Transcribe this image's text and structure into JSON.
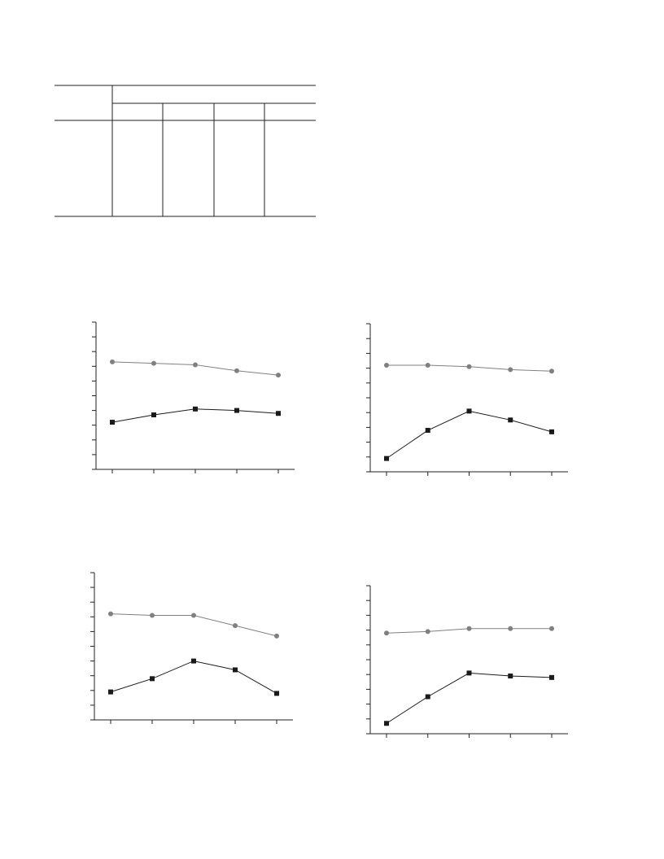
{
  "chart_data": [
    {
      "type": "line",
      "categories": [
        null,
        null,
        null,
        null,
        null
      ],
      "ylim": [
        0,
        10
      ],
      "yticks": [
        0,
        1,
        2,
        3,
        4,
        5,
        6,
        7,
        8,
        9,
        10
      ],
      "series": [
        {
          "color": "#808080",
          "marker": "circle",
          "values": [
            7.3,
            7.2,
            7.1,
            6.7,
            6.4
          ]
        },
        {
          "color": "#1a1a1a",
          "marker": "square",
          "values": [
            3.2,
            3.7,
            4.1,
            4.0,
            3.8
          ]
        }
      ]
    },
    {
      "type": "line",
      "categories": [
        null,
        null,
        null,
        null,
        null
      ],
      "ylim": [
        0,
        10
      ],
      "yticks": [
        0,
        1,
        2,
        3,
        4,
        5,
        6,
        7,
        8,
        9,
        10
      ],
      "series": [
        {
          "color": "#808080",
          "marker": "circle",
          "values": [
            7.2,
            7.2,
            7.1,
            6.9,
            6.8
          ]
        },
        {
          "color": "#1a1a1a",
          "marker": "square",
          "values": [
            0.9,
            2.8,
            4.1,
            3.5,
            2.7
          ]
        }
      ]
    },
    {
      "type": "line",
      "categories": [
        null,
        null,
        null,
        null,
        null
      ],
      "ylim": [
        0,
        10
      ],
      "yticks": [
        0,
        1,
        2,
        3,
        4,
        5,
        6,
        7,
        8,
        9,
        10
      ],
      "series": [
        {
          "color": "#808080",
          "marker": "circle",
          "values": [
            7.2,
            7.1,
            7.1,
            6.4,
            5.7
          ]
        },
        {
          "color": "#1a1a1a",
          "marker": "square",
          "values": [
            1.9,
            2.8,
            4.0,
            3.4,
            1.8
          ]
        }
      ]
    },
    {
      "type": "line",
      "categories": [
        null,
        null,
        null,
        null,
        null
      ],
      "ylim": [
        0,
        10
      ],
      "yticks": [
        0,
        1,
        2,
        3,
        4,
        5,
        6,
        7,
        8,
        9,
        10
      ],
      "series": [
        {
          "color": "#808080",
          "marker": "circle",
          "values": [
            6.8,
            6.9,
            7.1,
            7.1,
            7.1
          ]
        },
        {
          "color": "#1a1a1a",
          "marker": "square",
          "values": [
            0.7,
            2.5,
            4.1,
            3.9,
            3.8
          ]
        }
      ]
    }
  ]
}
